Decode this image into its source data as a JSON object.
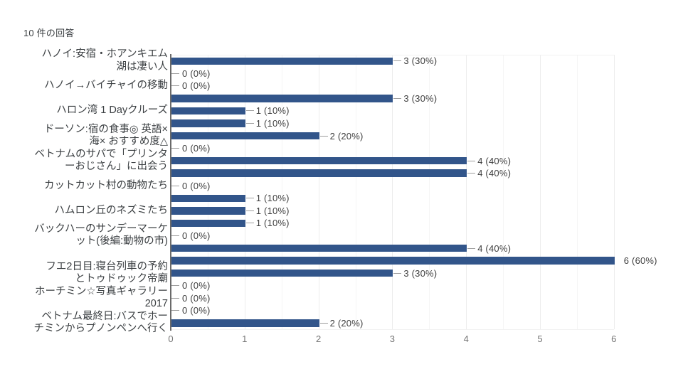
{
  "chart_data": {
    "type": "bar",
    "orientation": "horizontal",
    "title": "10 件の回答",
    "xlim": [
      0,
      6
    ],
    "x_ticks": [
      "0",
      "1",
      "2",
      "3",
      "4",
      "5",
      "6"
    ],
    "grid": true,
    "minor_gridlines_step": 0.5,
    "legend": "none",
    "bar_color": "#32558a",
    "bars": [
      {
        "value": 3,
        "value_label": "3 (30%)",
        "category_lines": [
          "ハノイ:安宿・ホアンキエム",
          "湖は凄い人"
        ]
      },
      {
        "value": 0,
        "value_label": "0 (0%)",
        "category_lines": null
      },
      {
        "value": 0,
        "value_label": "0 (0%)",
        "category_lines": [
          "ハノイ→バイチャイの移動"
        ]
      },
      {
        "value": 3,
        "value_label": "3 (30%)",
        "category_lines": null
      },
      {
        "value": 1,
        "value_label": "1 (10%)",
        "category_lines": [
          "ハロン湾 1 Dayクルーズ"
        ]
      },
      {
        "value": 1,
        "value_label": "1 (10%)",
        "category_lines": null
      },
      {
        "value": 2,
        "value_label": "2 (20%)",
        "category_lines": [
          "ドーソン:宿の食事◎ 英語×",
          "海× おすすめ度△"
        ]
      },
      {
        "value": 0,
        "value_label": "0 (0%)",
        "category_lines": null
      },
      {
        "value": 4,
        "value_label": "4 (40%)",
        "category_lines": [
          "ベトナムのサパで「プリンタ",
          "ーおじさん」に出会う"
        ]
      },
      {
        "value": 4,
        "value_label": "4 (40%)",
        "category_lines": null
      },
      {
        "value": 0,
        "value_label": "0 (0%)",
        "category_lines": [
          "カットカット村の動物たち"
        ]
      },
      {
        "value": 1,
        "value_label": "1 (10%)",
        "category_lines": null
      },
      {
        "value": 1,
        "value_label": "1 (10%)",
        "category_lines": [
          "ハムロン丘のネズミたち"
        ]
      },
      {
        "value": 1,
        "value_label": "1 (10%)",
        "category_lines": null
      },
      {
        "value": 0,
        "value_label": "0 (0%)",
        "category_lines": [
          "バックハーのサンデーマーケ",
          "ット(後編:動物の市)"
        ]
      },
      {
        "value": 4,
        "value_label": "4 (40%)",
        "category_lines": null
      },
      {
        "value": 6,
        "value_label": "6 (60%)",
        "category_lines": null
      },
      {
        "value": 3,
        "value_label": "3 (30%)",
        "category_lines": [
          "フエ2日目:寝台列車の予約",
          "とトゥドゥック帝廟"
        ]
      },
      {
        "value": 0,
        "value_label": "0 (0%)",
        "category_lines": null
      },
      {
        "value": 0,
        "value_label": "0 (0%)",
        "category_lines": [
          "ホーチミン☆写真ギャラリー",
          "2017"
        ]
      },
      {
        "value": 0,
        "value_label": "0 (0%)",
        "category_lines": null
      },
      {
        "value": 2,
        "value_label": "2 (20%)",
        "category_lines": [
          "ベトナム最終日:バスでホー",
          "チミンからプノンペンへ行く"
        ]
      }
    ]
  }
}
